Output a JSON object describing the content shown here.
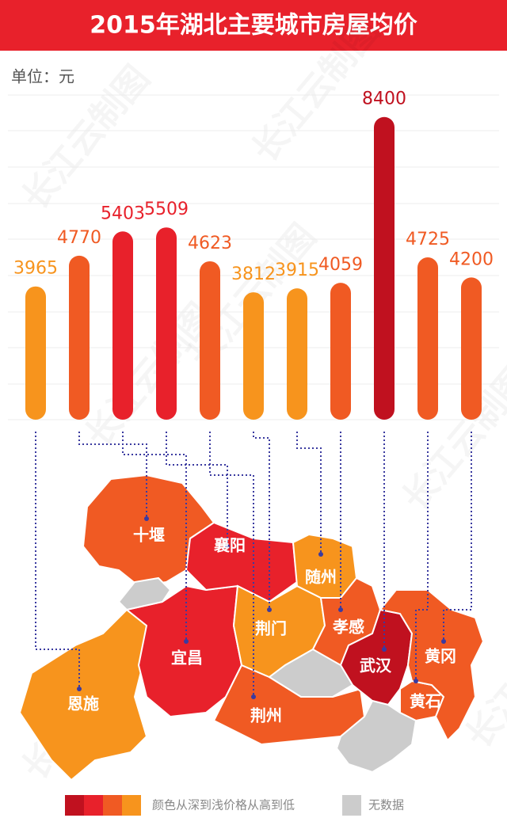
{
  "chart_data": {
    "type": "bar",
    "title": "2015年湖北主要城市房屋均价",
    "unit_label": "单位：元",
    "categories": [
      "恩施",
      "十堰",
      "宜昌",
      "襄阳",
      "荆州",
      "荆门",
      "随州",
      "孝感",
      "武汉",
      "黄石",
      "黄冈"
    ],
    "values": [
      3965,
      4770,
      5403,
      5509,
      4623,
      3812,
      3915,
      4059,
      8400,
      4725,
      4200
    ],
    "colors": [
      "#f7941d",
      "#f05a23",
      "#e8212b",
      "#e8212b",
      "#f05a23",
      "#f7941d",
      "#f7941d",
      "#f05a23",
      "#c0111f",
      "#f05a23",
      "#f05a23"
    ],
    "legend": {
      "colors": [
        "#c0111f",
        "#e8212b",
        "#f05a23",
        "#f7941d"
      ],
      "label": "颜色从深到浅价格从高到低",
      "no_data_label": "无数据",
      "no_data_color": "#cccccc"
    },
    "watermark": "长江云制图"
  }
}
